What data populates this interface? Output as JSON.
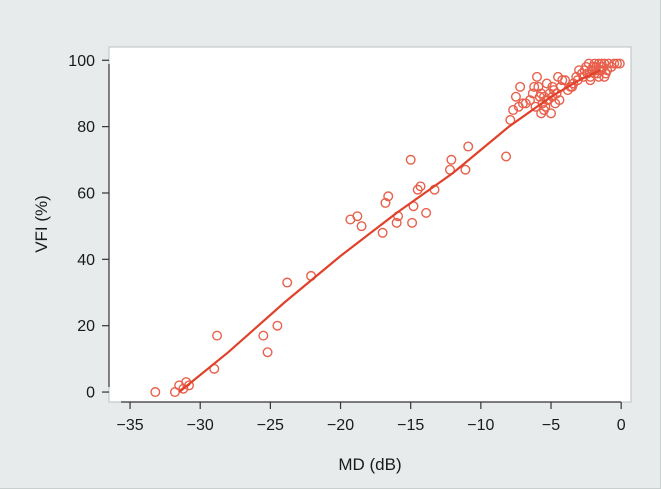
{
  "chart_data": {
    "type": "scatter",
    "title": "",
    "xlabel": "MD (dB)",
    "ylabel": "VFI (%)",
    "xlim": [
      -36.5,
      0.7
    ],
    "ylim": [
      -3,
      104
    ],
    "xticks": [
      -35,
      -30,
      -25,
      -20,
      -15,
      -10,
      -5,
      0
    ],
    "yticks": [
      0,
      20,
      40,
      60,
      80,
      100
    ],
    "grid": false,
    "legend": "none",
    "colors": {
      "point": "#e8604c",
      "fit_line": "#e0412a",
      "plot_background": "#ffffff",
      "figure_background": "#e8ebeb",
      "axis": "#333333"
    },
    "series": [
      {
        "marker": "hollow-circle",
        "x": [
          -33.2,
          -31.8,
          -31.5,
          -31.2,
          -31.0,
          -30.8,
          -29.0,
          -28.8,
          -25.5,
          -25.2,
          -24.5,
          -23.8,
          -22.1,
          -19.3,
          -18.8,
          -18.5,
          -17.0,
          -16.8,
          -16.6,
          -16.0,
          -15.9,
          -15.0,
          -14.9,
          -14.8,
          -14.5,
          -14.3,
          -13.9,
          -13.3,
          -12.2,
          -12.1,
          -11.1,
          -10.9,
          -8.2,
          -7.9,
          -7.7,
          -7.5,
          -7.3,
          -7.2,
          -6.8,
          -6.5,
          -6.2,
          -6.1,
          -6.0,
          -5.9,
          -5.8,
          -5.7,
          -5.6,
          -5.5,
          -5.4,
          -5.3,
          -5.2,
          -5.1,
          -5.0,
          -4.9,
          -4.8,
          -4.7,
          -4.6,
          -4.5,
          -4.4,
          -4.3,
          -4.2,
          -4.0,
          -3.8,
          -3.6,
          -3.4,
          -3.2,
          -3.0,
          -2.8,
          -2.6,
          -2.5,
          -2.4,
          -2.3,
          -2.2,
          -2.1,
          -2.0,
          -1.9,
          -1.8,
          -1.7,
          -1.6,
          -1.5,
          -1.4,
          -1.3,
          -1.2,
          -1.1,
          -1.0,
          -0.9,
          -0.7,
          -0.5,
          -0.3,
          -0.1,
          -5.7,
          -5.3,
          -4.9,
          -2.2,
          -1.9,
          -1.6,
          -1.4,
          -1.2,
          -3.1,
          -3.5,
          -2.7,
          -1.8,
          -2.0,
          -6.3,
          -7.0,
          -5.5
        ],
        "y": [
          0,
          0,
          2,
          1,
          3,
          2,
          7,
          17,
          17,
          12,
          20,
          33,
          35,
          52,
          53,
          50,
          48,
          57,
          59,
          51,
          53,
          70,
          51,
          56,
          61,
          62,
          54,
          61,
          67,
          70,
          67,
          74,
          71,
          82,
          85,
          89,
          86,
          92,
          87,
          88,
          92,
          86,
          95,
          92,
          89,
          84,
          87,
          89,
          86,
          93,
          88,
          90,
          84,
          89,
          91,
          87,
          90,
          95,
          88,
          92,
          94,
          94,
          91,
          92,
          93,
          95,
          97,
          96,
          97,
          98,
          96,
          99,
          95,
          97,
          98,
          99,
          98,
          96,
          99,
          97,
          99,
          98,
          99,
          96,
          97,
          99,
          98,
          99,
          99,
          99,
          90,
          88,
          92,
          94,
          96,
          95,
          97,
          95,
          94,
          92,
          95,
          97,
          98,
          90,
          87,
          85
        ]
      }
    ],
    "fit_line": {
      "x": [
        -31.5,
        -28,
        -24,
        -20,
        -16,
        -12,
        -8,
        -5,
        -3,
        -1.5
      ],
      "y": [
        0,
        12,
        27,
        41,
        54,
        66,
        80,
        89,
        94,
        97
      ]
    }
  }
}
